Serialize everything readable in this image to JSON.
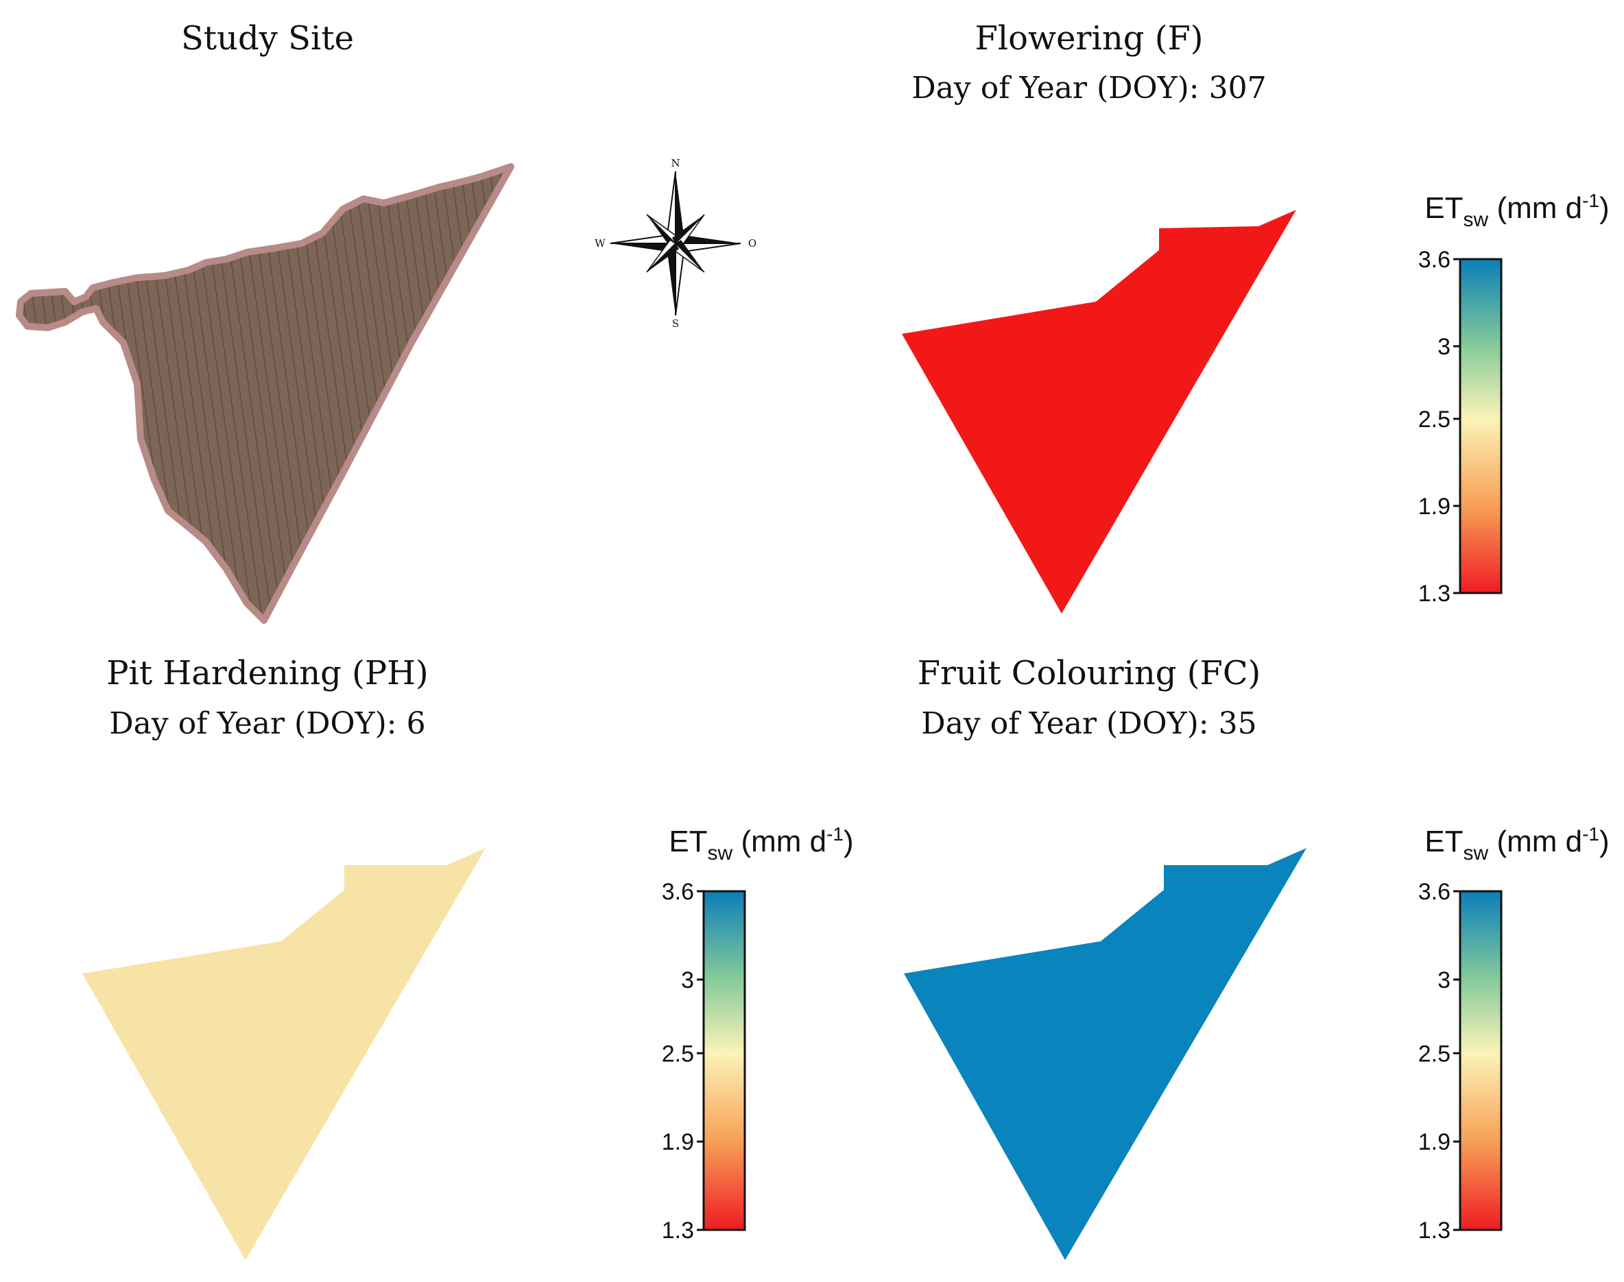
{
  "panels": [
    {
      "id": "study-site",
      "title": "Study Site",
      "subtitle": ""
    },
    {
      "id": "flowering",
      "title": "Flowering (F)",
      "subtitle": "Day of Year (DOY): 307",
      "fill_color": "#f21818"
    },
    {
      "id": "pit-hardening",
      "title": "Pit Hardening (PH)",
      "subtitle": "Day of Year (DOY): 6",
      "fill_color": "#f8e3a6"
    },
    {
      "id": "fruit-colouring",
      "title": "Fruit Colouring (FC)",
      "subtitle": "Day of Year (DOY): 35",
      "fill_color": "#0a84bd"
    }
  ],
  "compass": {
    "n": "N",
    "s": "S",
    "w": "W",
    "e": "O"
  },
  "colorbar": {
    "label_main": "ET",
    "label_sub": "sw",
    "label_units_open": " (mm d",
    "label_units_sup": "-1",
    "label_units_close": ")",
    "min": 1.3,
    "max": 3.6,
    "ticks": [
      "3.6",
      "3",
      "2.5",
      "1.9",
      "1.3"
    ],
    "tick_values": [
      3.6,
      3.0,
      2.5,
      1.9,
      1.3
    ],
    "gradient": [
      {
        "value": 1.3,
        "color": "#ee1c25"
      },
      {
        "value": 1.9,
        "color": "#f7a055"
      },
      {
        "value": 2.5,
        "color": "#fbf3b8"
      },
      {
        "value": 3.0,
        "color": "#86cb9a"
      },
      {
        "value": 3.6,
        "color": "#0a7fb7"
      }
    ]
  },
  "site_image": {
    "fill_color": "#7d6657",
    "border_color": "#b88b87",
    "row_color": "#5f4c40"
  }
}
